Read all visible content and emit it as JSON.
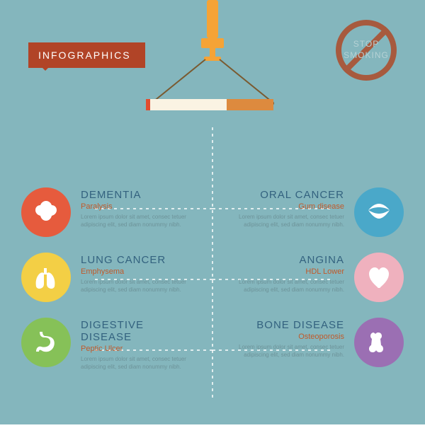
{
  "background_color": "#84b6bd",
  "banner": {
    "label": "INFOGRAPHICS",
    "bg": "#b14427",
    "text_color": "#ffffff"
  },
  "stop_badge": {
    "line1": "STOP",
    "line2": "SMOKING",
    "ring_color": "#a75a3e",
    "inner_bg": "#84b6bd",
    "text_color": "#b6d2d5"
  },
  "crane_colors": {
    "arm": "#f5a336",
    "string": "#7a5a30"
  },
  "cigarette": {
    "body": "#faf3e3",
    "filter": "#dd8a3e",
    "ember": "#e24c2f"
  },
  "dash_color": "#ffffff",
  "title_color": "#33627f",
  "sub_color": "#c05a2b",
  "lorem_color": "#6d9399",
  "lorem": "Lorem ipsum dolor sit amet, consec\ntetuer adipiscing elit, sed diam\nnonummy nibh.",
  "items_left": [
    {
      "title": "DEMENTIA",
      "sub": "Paralysis",
      "icon": "brain",
      "color": "#e65b3d"
    },
    {
      "title": "LUNG CANCER",
      "sub": "Emphysema",
      "icon": "lungs",
      "color": "#f3cf45"
    },
    {
      "title": "DIGESTIVE DISEASE",
      "sub": "Peptic Ulcer",
      "icon": "stomach",
      "color": "#86c158"
    }
  ],
  "items_right": [
    {
      "title": "ORAL CANCER",
      "sub": "Gum disease",
      "icon": "mouth",
      "color": "#4aa8c9"
    },
    {
      "title": "ANGINA",
      "sub": "HDL Lower",
      "icon": "heart",
      "color": "#efb1be"
    },
    {
      "title": "BONE DISEASE",
      "sub": "Osteoporosis",
      "icon": "bone",
      "color": "#9b6fb3"
    }
  ]
}
